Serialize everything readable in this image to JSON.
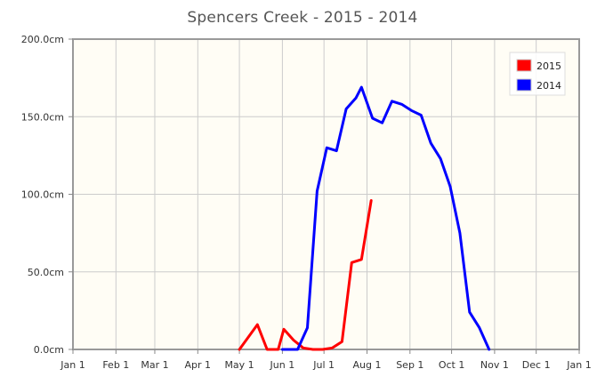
{
  "chart_data": {
    "type": "line",
    "title": "Spencers Creek - 2015 - 2014",
    "xlabel": "",
    "ylabel": "",
    "xlim": [
      "Jan 1",
      "Jan 1"
    ],
    "ylim": [
      0,
      200
    ],
    "y_ticks": [
      "0.0cm",
      "50.0cm",
      "100.0cm",
      "150.0cm",
      "200.0cm"
    ],
    "x_ticks": [
      "Jan 1",
      "Feb 1",
      "Mar 1",
      "Apr 1",
      "May 1",
      "Jun 1",
      "Jul 1",
      "Aug 1",
      "Sep 1",
      "Oct 1",
      "Nov 1",
      "Dec 1",
      "Jan 1"
    ],
    "grid": true,
    "legend_position": "top-right",
    "background_color": "#fffdf5",
    "series": [
      {
        "name": "2015",
        "color": "#ff0000",
        "points": [
          {
            "x": "May 1",
            "y": 0
          },
          {
            "x": "May 14",
            "y": 16
          },
          {
            "x": "May 21",
            "y": 0
          },
          {
            "x": "May 29",
            "y": 0
          },
          {
            "x": "Jun 2",
            "y": 13
          },
          {
            "x": "Jun 9",
            "y": 6
          },
          {
            "x": "Jun 16",
            "y": 1
          },
          {
            "x": "Jun 23",
            "y": 0
          },
          {
            "x": "Jun 30",
            "y": 0
          },
          {
            "x": "Jul 7",
            "y": 1
          },
          {
            "x": "Jul 14",
            "y": 5
          },
          {
            "x": "Jul 21",
            "y": 56
          },
          {
            "x": "Jul 28",
            "y": 58
          },
          {
            "x": "Aug 4",
            "y": 96
          }
        ]
      },
      {
        "name": "2014",
        "color": "#0000ff",
        "points": [
          {
            "x": "Jun 1",
            "y": 0
          },
          {
            "x": "Jun 12",
            "y": 0
          },
          {
            "x": "Jun 19",
            "y": 14
          },
          {
            "x": "Jun 26",
            "y": 102
          },
          {
            "x": "Jul 3",
            "y": 130
          },
          {
            "x": "Jul 10",
            "y": 128
          },
          {
            "x": "Jul 17",
            "y": 155
          },
          {
            "x": "Jul 24",
            "y": 162
          },
          {
            "x": "Jul 28",
            "y": 169
          },
          {
            "x": "Aug 5",
            "y": 149
          },
          {
            "x": "Aug 12",
            "y": 146
          },
          {
            "x": "Aug 19",
            "y": 160
          },
          {
            "x": "Aug 26",
            "y": 158
          },
          {
            "x": "Sep 2",
            "y": 154
          },
          {
            "x": "Sep 9",
            "y": 151
          },
          {
            "x": "Sep 16",
            "y": 133
          },
          {
            "x": "Sep 23",
            "y": 123
          },
          {
            "x": "Sep 30",
            "y": 105
          },
          {
            "x": "Oct 7",
            "y": 75
          },
          {
            "x": "Oct 14",
            "y": 24
          },
          {
            "x": "Oct 21",
            "y": 14
          },
          {
            "x": "Oct 28",
            "y": 0
          }
        ]
      }
    ]
  }
}
